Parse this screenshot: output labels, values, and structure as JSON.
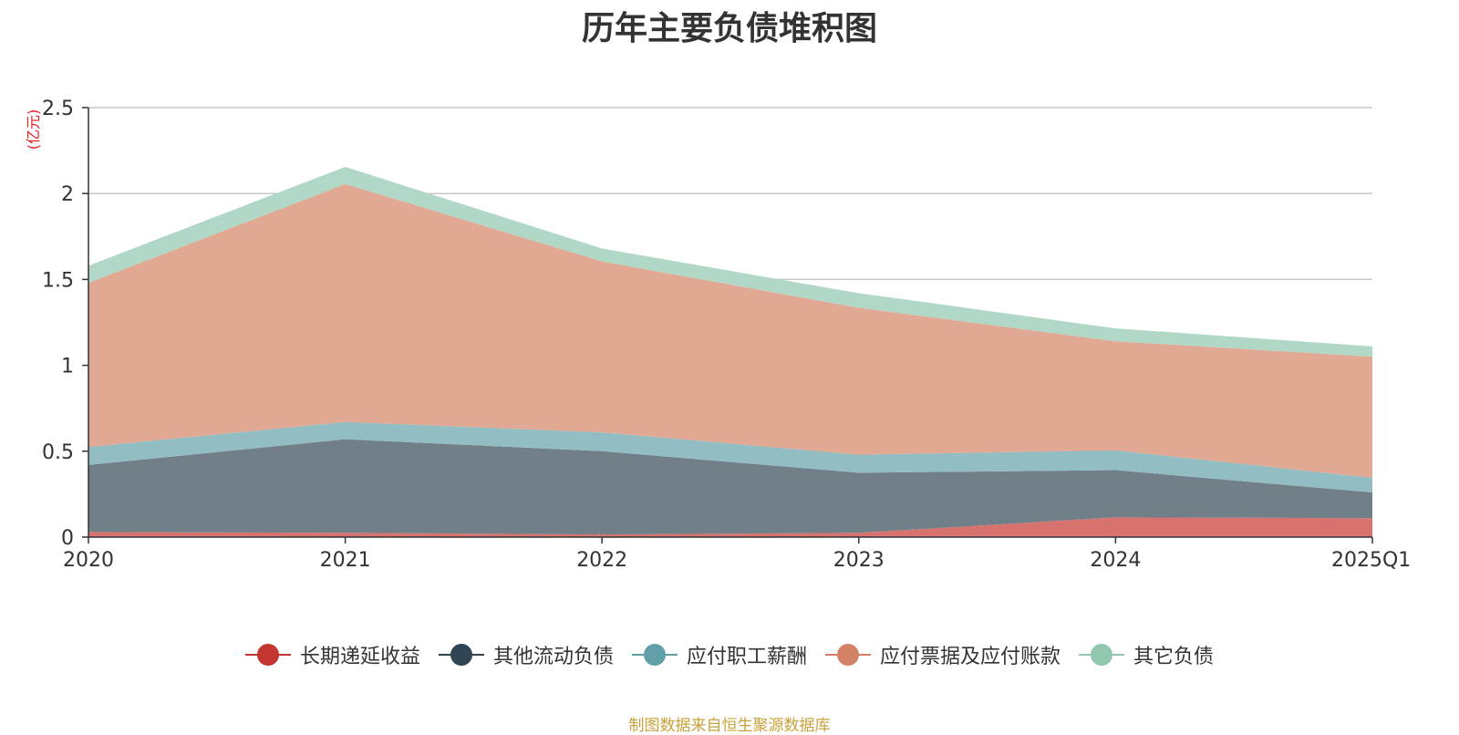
{
  "chart_data": {
    "type": "area",
    "title": "历年主要负债堆积图",
    "ylabel": "(亿元)",
    "xlabel": "",
    "ylim": [
      0,
      2.5
    ],
    "yticks": [
      "0",
      "0.5",
      "1",
      "1.5",
      "2",
      "2.5"
    ],
    "ytick_values": [
      0,
      0.5,
      1,
      1.5,
      2,
      2.5
    ],
    "categories": [
      "2020",
      "2021",
      "2022",
      "2023",
      "2024",
      "2025Q1"
    ],
    "stacked": true,
    "grid": true,
    "legend_position": "bottom",
    "series": [
      {
        "name": "长期递延收益",
        "values": [
          0.03,
          0.025,
          0.015,
          0.025,
          0.115,
          0.11
        ],
        "color": "#c23531",
        "fill": "#d7726e"
      },
      {
        "name": "其他流动负债",
        "values": [
          0.39,
          0.545,
          0.485,
          0.35,
          0.275,
          0.15
        ],
        "color": "#2f4554",
        "fill": "#717f89"
      },
      {
        "name": "应付职工薪酬",
        "values": [
          0.105,
          0.1,
          0.11,
          0.105,
          0.115,
          0.085
        ],
        "color": "#61a0a8",
        "fill": "#92bec3"
      },
      {
        "name": "应付票据及应付账款",
        "values": [
          0.955,
          1.385,
          0.995,
          0.855,
          0.635,
          0.705
        ],
        "color": "#d48265",
        "fill": "#e1a893"
      },
      {
        "name": "其它负债",
        "values": [
          0.1,
          0.1,
          0.075,
          0.085,
          0.075,
          0.06
        ],
        "color": "#91c7ae",
        "fill": "#b1d8c6"
      }
    ],
    "source": "制图数据来自恒生聚源数据库"
  }
}
